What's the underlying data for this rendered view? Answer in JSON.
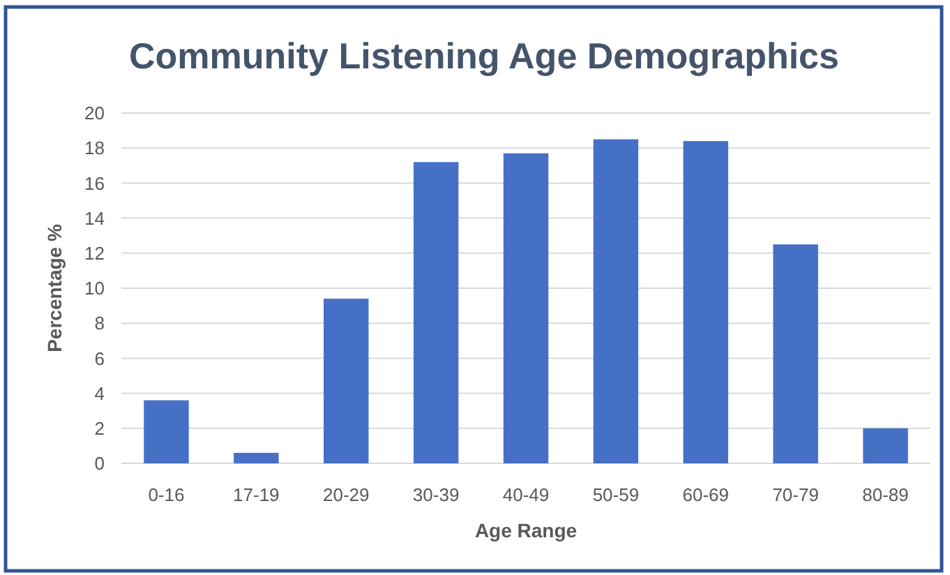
{
  "chart_data": {
    "type": "bar",
    "title": "Community Listening Age Demographics",
    "xlabel": "Age Range",
    "ylabel": "Percentage %",
    "categories": [
      "0-16",
      "17-19",
      "20-29",
      "30-39",
      "40-49",
      "50-59",
      "60-69",
      "70-79",
      "80-89"
    ],
    "values": [
      3.6,
      0.6,
      9.4,
      17.2,
      17.7,
      18.5,
      18.4,
      12.5,
      2.0
    ],
    "color": "#4570c6",
    "ylim": [
      0,
      20
    ],
    "yticks": [
      0,
      2,
      4,
      6,
      8,
      10,
      12,
      14,
      16,
      18,
      20
    ],
    "grid": "y"
  }
}
